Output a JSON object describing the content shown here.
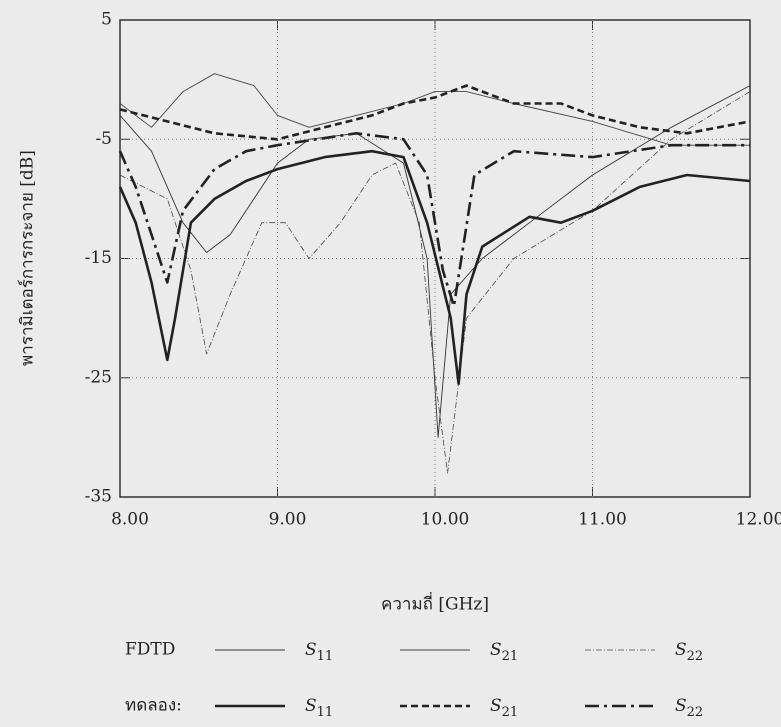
{
  "chart_data": {
    "type": "line",
    "x_label": "ความถี่ [GHz]",
    "y_label": "พารามิเตอร์การกระจาย [dB]",
    "xlim": [
      8,
      12
    ],
    "ylim": [
      -35,
      5
    ],
    "xticks": [
      {
        "value": 8,
        "label": "8.00"
      },
      {
        "value": 9,
        "label": "9.00"
      },
      {
        "value": 10,
        "label": "10.00"
      },
      {
        "value": 11,
        "label": "11.00"
      },
      {
        "value": 12,
        "label": "12.00"
      }
    ],
    "yticks": [
      5,
      -5,
      -15,
      -25,
      -35
    ],
    "grid": true,
    "series": [
      {
        "name": "S11",
        "group": "FDTD",
        "color": "#333333",
        "style": "thin-solid",
        "x": [
          8.0,
          8.2,
          8.4,
          8.55,
          8.7,
          8.85,
          9.0,
          9.2,
          9.5,
          9.8,
          9.95,
          10.02,
          10.1,
          10.3,
          10.6,
          11.0,
          11.5,
          12.0
        ],
        "values": [
          -3,
          -6,
          -12,
          -14.5,
          -13,
          -10,
          -7,
          -5,
          -4.5,
          -7,
          -15,
          -30,
          -18,
          -15,
          -12,
          -8,
          -4,
          -0.5
        ]
      },
      {
        "name": "S21",
        "group": "FDTD",
        "color": "#444444",
        "style": "thin-solid",
        "x": [
          8.0,
          8.2,
          8.4,
          8.6,
          8.85,
          9.0,
          9.2,
          9.5,
          9.8,
          10.0,
          10.2,
          10.5,
          11.0,
          11.5,
          12.0
        ],
        "values": [
          -2,
          -4,
          -1,
          0.5,
          -0.5,
          -3,
          -4,
          -3,
          -2,
          -1,
          -1,
          -2,
          -3.5,
          -5.5,
          -5.5
        ]
      },
      {
        "name": "S22",
        "group": "FDTD",
        "color": "#444444",
        "style": "thin-dashdot",
        "x": [
          8.0,
          8.3,
          8.45,
          8.55,
          8.7,
          8.9,
          9.05,
          9.2,
          9.4,
          9.6,
          9.75,
          9.9,
          10.0,
          10.08,
          10.2,
          10.5,
          11.0,
          11.5,
          12.0
        ],
        "values": [
          -8,
          -10,
          -16,
          -23,
          -18,
          -12,
          -12,
          -15,
          -12,
          -8,
          -7,
          -12,
          -25,
          -33,
          -20,
          -15,
          -11,
          -5,
          -1
        ]
      },
      {
        "name": "S11",
        "group": "ทดลอง:",
        "color": "#222222",
        "style": "thick-solid",
        "x": [
          8.0,
          8.1,
          8.2,
          8.3,
          8.35,
          8.45,
          8.6,
          8.8,
          9.0,
          9.3,
          9.6,
          9.8,
          9.95,
          10.1,
          10.15,
          10.2,
          10.3,
          10.6,
          10.8,
          11.0,
          11.3,
          11.6,
          12.0
        ],
        "values": [
          -9,
          -12,
          -17,
          -23.5,
          -20,
          -12,
          -10,
          -8.5,
          -7.5,
          -6.5,
          -6,
          -6.5,
          -12,
          -20,
          -25.5,
          -18,
          -14,
          -11.5,
          -12,
          -11,
          -9,
          -8,
          -8.5
        ]
      },
      {
        "name": "S21",
        "group": "ทดลอง:",
        "color": "#222222",
        "style": "thick-dashed",
        "x": [
          8.0,
          8.3,
          8.6,
          9.0,
          9.3,
          9.6,
          9.8,
          10.0,
          10.2,
          10.5,
          10.8,
          11.0,
          11.3,
          11.6,
          12.0
        ],
        "values": [
          -2.5,
          -3.5,
          -4.5,
          -5,
          -4,
          -3,
          -2,
          -1.5,
          -0.5,
          -2,
          -2,
          -3,
          -4,
          -4.5,
          -3.5
        ]
      },
      {
        "name": "S22",
        "group": "ทดลอง:",
        "color": "#222222",
        "style": "thick-dashdot",
        "x": [
          8.0,
          8.1,
          8.2,
          8.3,
          8.4,
          8.6,
          8.8,
          9.0,
          9.5,
          9.8,
          9.95,
          10.05,
          10.12,
          10.25,
          10.5,
          11.0,
          11.5,
          12.0
        ],
        "values": [
          -6,
          -9,
          -13,
          -17,
          -11,
          -7.5,
          -6,
          -5.5,
          -4.5,
          -5,
          -8,
          -16,
          -19,
          -8,
          -6,
          -6.5,
          -5.5,
          -5.5
        ]
      }
    ]
  }
}
